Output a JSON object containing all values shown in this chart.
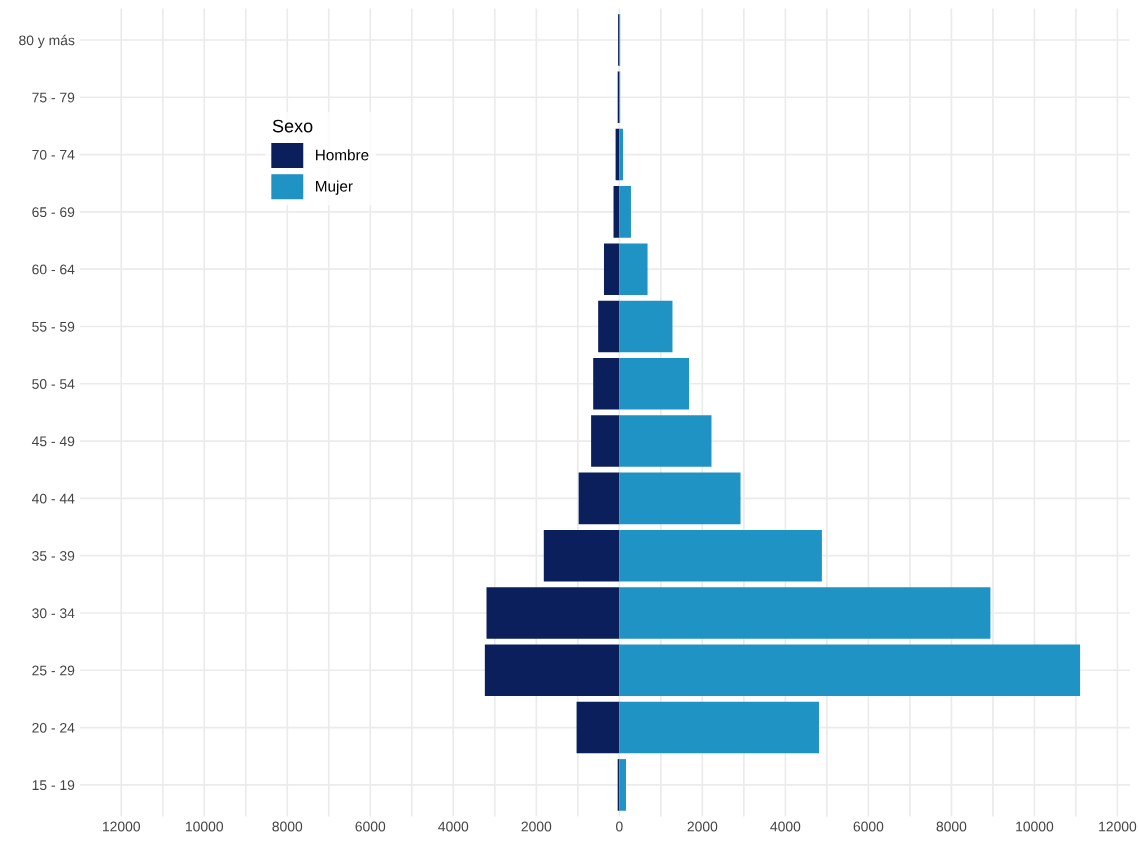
{
  "chart_data": {
    "type": "bar",
    "orientation": "horizontal",
    "stacked": true,
    "legend_title": "Sexo",
    "legend": "top left",
    "grid": true,
    "categories": [
      "80 y más",
      "75 - 79",
      "70 - 74",
      "65 - 69",
      "60 - 64",
      "55 - 59",
      "50 - 54",
      "45 - 49",
      "40 - 44",
      "35 - 39",
      "30 - 34",
      "25 - 29",
      "20 - 24",
      "15 - 19"
    ],
    "series": [
      {
        "name": "Hombre",
        "color": "#0a1f5c",
        "values": [
          -30,
          -40,
          -90,
          -140,
          -370,
          -510,
          -630,
          -680,
          -980,
          -1820,
          -3200,
          -3240,
          -1030,
          -40
        ]
      },
      {
        "name": "Mujer",
        "color": "#1f93c3",
        "values": [
          20,
          20,
          90,
          280,
          680,
          1280,
          1680,
          2220,
          2920,
          4880,
          8940,
          11100,
          4810,
          160
        ]
      }
    ],
    "xlim": [
      -13000,
      12300
    ],
    "xticks": [
      {
        "value": -12000,
        "label": "12000"
      },
      {
        "value": -11000,
        "label": null
      },
      {
        "value": -10000,
        "label": "10000"
      },
      {
        "value": -9000,
        "label": null
      },
      {
        "value": -8000,
        "label": "8000"
      },
      {
        "value": -7000,
        "label": null
      },
      {
        "value": -6000,
        "label": "6000"
      },
      {
        "value": -5000,
        "label": null
      },
      {
        "value": -4000,
        "label": "4000"
      },
      {
        "value": -3000,
        "label": null
      },
      {
        "value": -2000,
        "label": "2000"
      },
      {
        "value": -1000,
        "label": null
      },
      0,
      {
        "value": 1000,
        "label": null
      },
      2000,
      {
        "value": 3000,
        "label": null
      },
      4000,
      {
        "value": 5000,
        "label": null
      },
      6000,
      {
        "value": 7000,
        "label": null
      },
      8000,
      {
        "value": 9000,
        "label": null
      },
      10000,
      {
        "value": 11000,
        "label": null
      },
      12000
    ]
  }
}
